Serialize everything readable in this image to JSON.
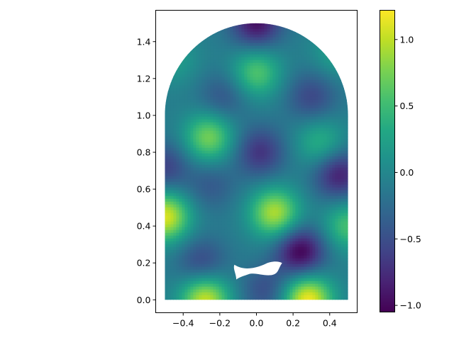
{
  "chart_data": {
    "type": "heatmap",
    "title": "",
    "xlabel": "",
    "ylabel": "",
    "xlim": [
      -0.55,
      0.55
    ],
    "ylim": [
      -0.07,
      1.57
    ],
    "x_ticks": [
      "−0.4",
      "−0.2",
      "0.0",
      "0.2",
      "0.4"
    ],
    "x_tick_values": [
      -0.4,
      -0.2,
      0.0,
      0.2,
      0.4
    ],
    "y_ticks": [
      "0.0",
      "0.2",
      "0.4",
      "0.6",
      "0.8",
      "1.0",
      "1.2",
      "1.4"
    ],
    "y_tick_values": [
      0.0,
      0.2,
      0.4,
      0.6,
      0.8,
      1.0,
      1.2,
      1.4
    ],
    "domain": {
      "shape": "rectangle with semicircular top",
      "x_range": [
        -0.5,
        0.5
      ],
      "rect_top": 1.0,
      "arc_center": [
        0.0,
        1.0
      ],
      "arc_radius": 0.5,
      "hole": "small wave-shaped cutout near (0.0, 0.17)"
    },
    "colormap": "viridis",
    "colorbar": {
      "range": [
        -1.05,
        1.22
      ],
      "ticks": [
        "−1.0",
        "−0.5",
        "0.0",
        "0.5",
        "1.0"
      ],
      "tick_values": [
        -1.0,
        -0.5,
        0.0,
        0.5,
        1.0
      ]
    },
    "features": [
      {
        "x": -0.28,
        "y": 0.0,
        "value": 1.05
      },
      {
        "x": 0.28,
        "y": 0.0,
        "value": 1.2
      },
      {
        "x": -0.5,
        "y": 0.45,
        "value": 1.1
      },
      {
        "x": 0.1,
        "y": 0.47,
        "value": 0.95
      },
      {
        "x": -0.26,
        "y": 0.88,
        "value": 0.75
      },
      {
        "x": 0.35,
        "y": 0.85,
        "value": 0.4
      },
      {
        "x": 0.0,
        "y": 1.23,
        "value": 0.6
      },
      {
        "x": 0.5,
        "y": 0.4,
        "value": 0.55
      },
      {
        "x": 0.45,
        "y": 1.35,
        "value": 0.3
      },
      {
        "x": -0.45,
        "y": 1.3,
        "value": 0.2
      },
      {
        "x": 0.24,
        "y": 0.26,
        "value": -1.05
      },
      {
        "x": 0.0,
        "y": 1.5,
        "value": -0.95
      },
      {
        "x": 0.45,
        "y": 0.68,
        "value": -0.85
      },
      {
        "x": 0.02,
        "y": 0.8,
        "value": -0.7
      },
      {
        "x": -0.5,
        "y": 0.72,
        "value": -0.6
      },
      {
        "x": -0.3,
        "y": 0.2,
        "value": -0.55
      },
      {
        "x": 0.3,
        "y": 1.1,
        "value": -0.55
      },
      {
        "x": -0.18,
        "y": 1.1,
        "value": -0.45
      },
      {
        "x": 0.05,
        "y": 0.05,
        "value": -0.5
      },
      {
        "x": -0.25,
        "y": 0.62,
        "value": -0.4
      }
    ]
  }
}
